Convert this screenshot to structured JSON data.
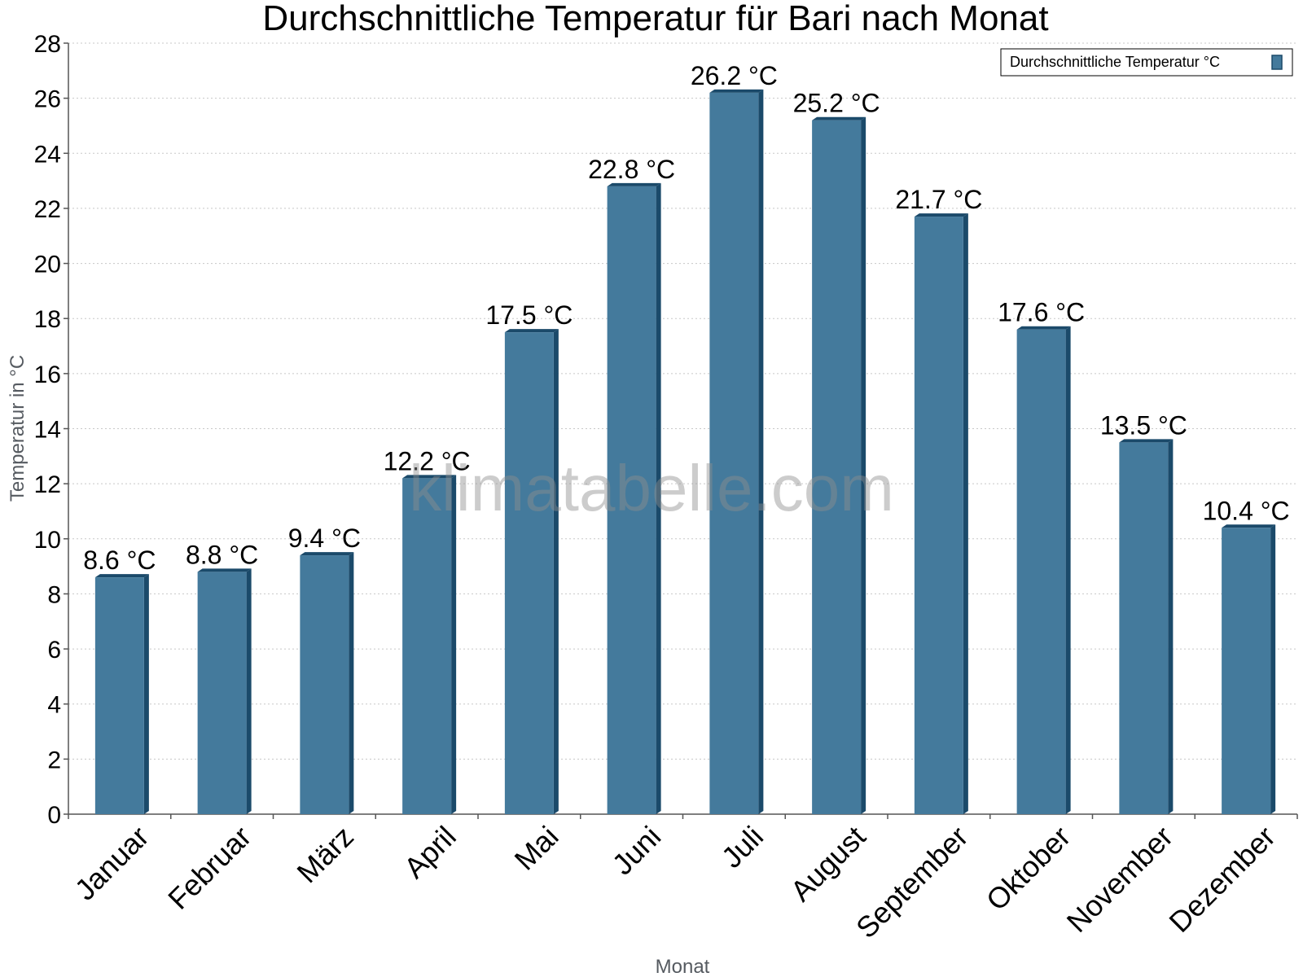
{
  "chart_data": {
    "type": "bar",
    "title": "Durchschnittliche Temperatur für Bari nach Monat",
    "xlabel": "Monat",
    "ylabel": "Temperatur in °C",
    "categories": [
      "Januar",
      "Februar",
      "März",
      "April",
      "Mai",
      "Juni",
      "Juli",
      "August",
      "September",
      "Oktober",
      "November",
      "Dezember"
    ],
    "series": [
      {
        "name": "Durchschnittliche Temperatur °C",
        "values": [
          8.6,
          8.8,
          9.4,
          12.2,
          17.5,
          22.8,
          26.2,
          25.2,
          21.7,
          17.6,
          13.5,
          10.4
        ],
        "data_labels": [
          "8.6 °C",
          "8.8 °C",
          "9.4 °C",
          "12.2 °C",
          "17.5 °C",
          "22.8 °C",
          "26.2 °C",
          "25.2 °C",
          "21.7 °C",
          "17.6 °C",
          "13.5 °C",
          "10.4 °C"
        ]
      }
    ],
    "ylim": [
      0,
      28
    ],
    "yticks": [
      "0",
      "2",
      "4",
      "6",
      "8",
      "10",
      "12",
      "14",
      "16",
      "18",
      "20",
      "22",
      "24",
      "26",
      "28"
    ],
    "grid": true,
    "legend_position": "top-right",
    "colors": {
      "bar": "#447a9c",
      "bar_shade": "#1b4a6a",
      "grid": "#c8c8c8",
      "axis_title": "#555a60"
    }
  },
  "watermark": "klimatabelle.com"
}
